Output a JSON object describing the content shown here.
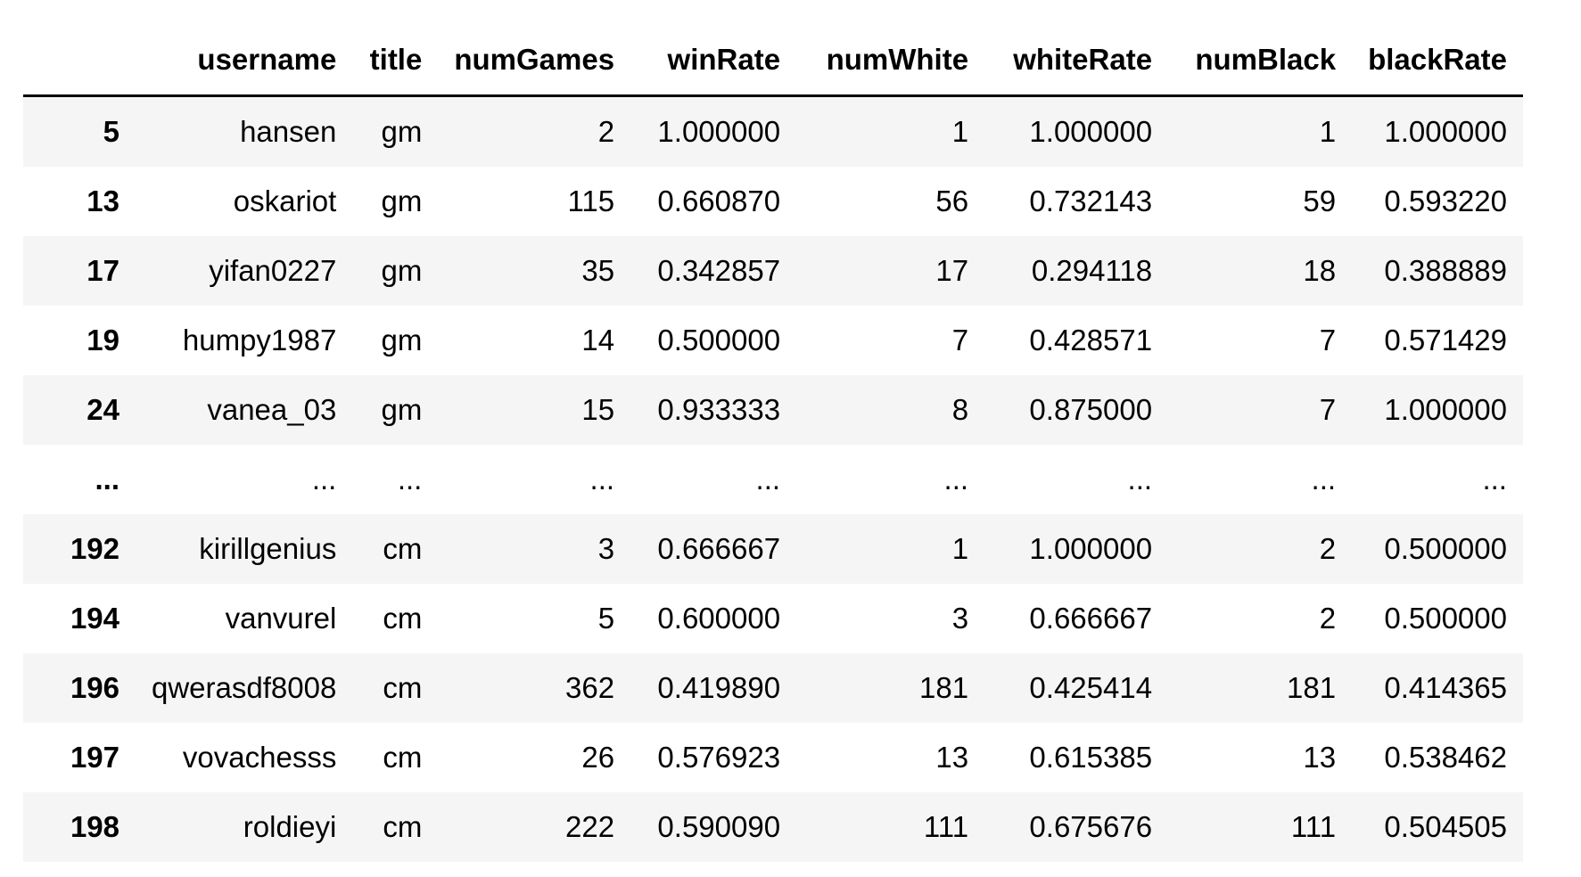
{
  "table": {
    "columns": [
      "",
      "username",
      "title",
      "numGames",
      "winRate",
      "numWhite",
      "whiteRate",
      "numBlack",
      "blackRate"
    ],
    "rows": [
      {
        "index": "5",
        "cells": [
          "hansen",
          "gm",
          "2",
          "1.000000",
          "1",
          "1.000000",
          "1",
          "1.000000"
        ]
      },
      {
        "index": "13",
        "cells": [
          "oskariot",
          "gm",
          "115",
          "0.660870",
          "56",
          "0.732143",
          "59",
          "0.593220"
        ]
      },
      {
        "index": "17",
        "cells": [
          "yifan0227",
          "gm",
          "35",
          "0.342857",
          "17",
          "0.294118",
          "18",
          "0.388889"
        ]
      },
      {
        "index": "19",
        "cells": [
          "humpy1987",
          "gm",
          "14",
          "0.500000",
          "7",
          "0.428571",
          "7",
          "0.571429"
        ]
      },
      {
        "index": "24",
        "cells": [
          "vanea_03",
          "gm",
          "15",
          "0.933333",
          "8",
          "0.875000",
          "7",
          "1.000000"
        ]
      },
      {
        "index": "...",
        "cells": [
          "...",
          "...",
          "...",
          "...",
          "...",
          "...",
          "...",
          "..."
        ]
      },
      {
        "index": "192",
        "cells": [
          "kirillgenius",
          "cm",
          "3",
          "0.666667",
          "1",
          "1.000000",
          "2",
          "0.500000"
        ]
      },
      {
        "index": "194",
        "cells": [
          "vanvurel",
          "cm",
          "5",
          "0.600000",
          "3",
          "0.666667",
          "2",
          "0.500000"
        ]
      },
      {
        "index": "196",
        "cells": [
          "qwerasdf8008",
          "cm",
          "362",
          "0.419890",
          "181",
          "0.425414",
          "181",
          "0.414365"
        ]
      },
      {
        "index": "197",
        "cells": [
          "vovachesss",
          "cm",
          "26",
          "0.576923",
          "13",
          "0.615385",
          "13",
          "0.538462"
        ]
      },
      {
        "index": "198",
        "cells": [
          "roldieyi",
          "cm",
          "222",
          "0.590090",
          "111",
          "0.675676",
          "111",
          "0.504505"
        ]
      }
    ]
  }
}
